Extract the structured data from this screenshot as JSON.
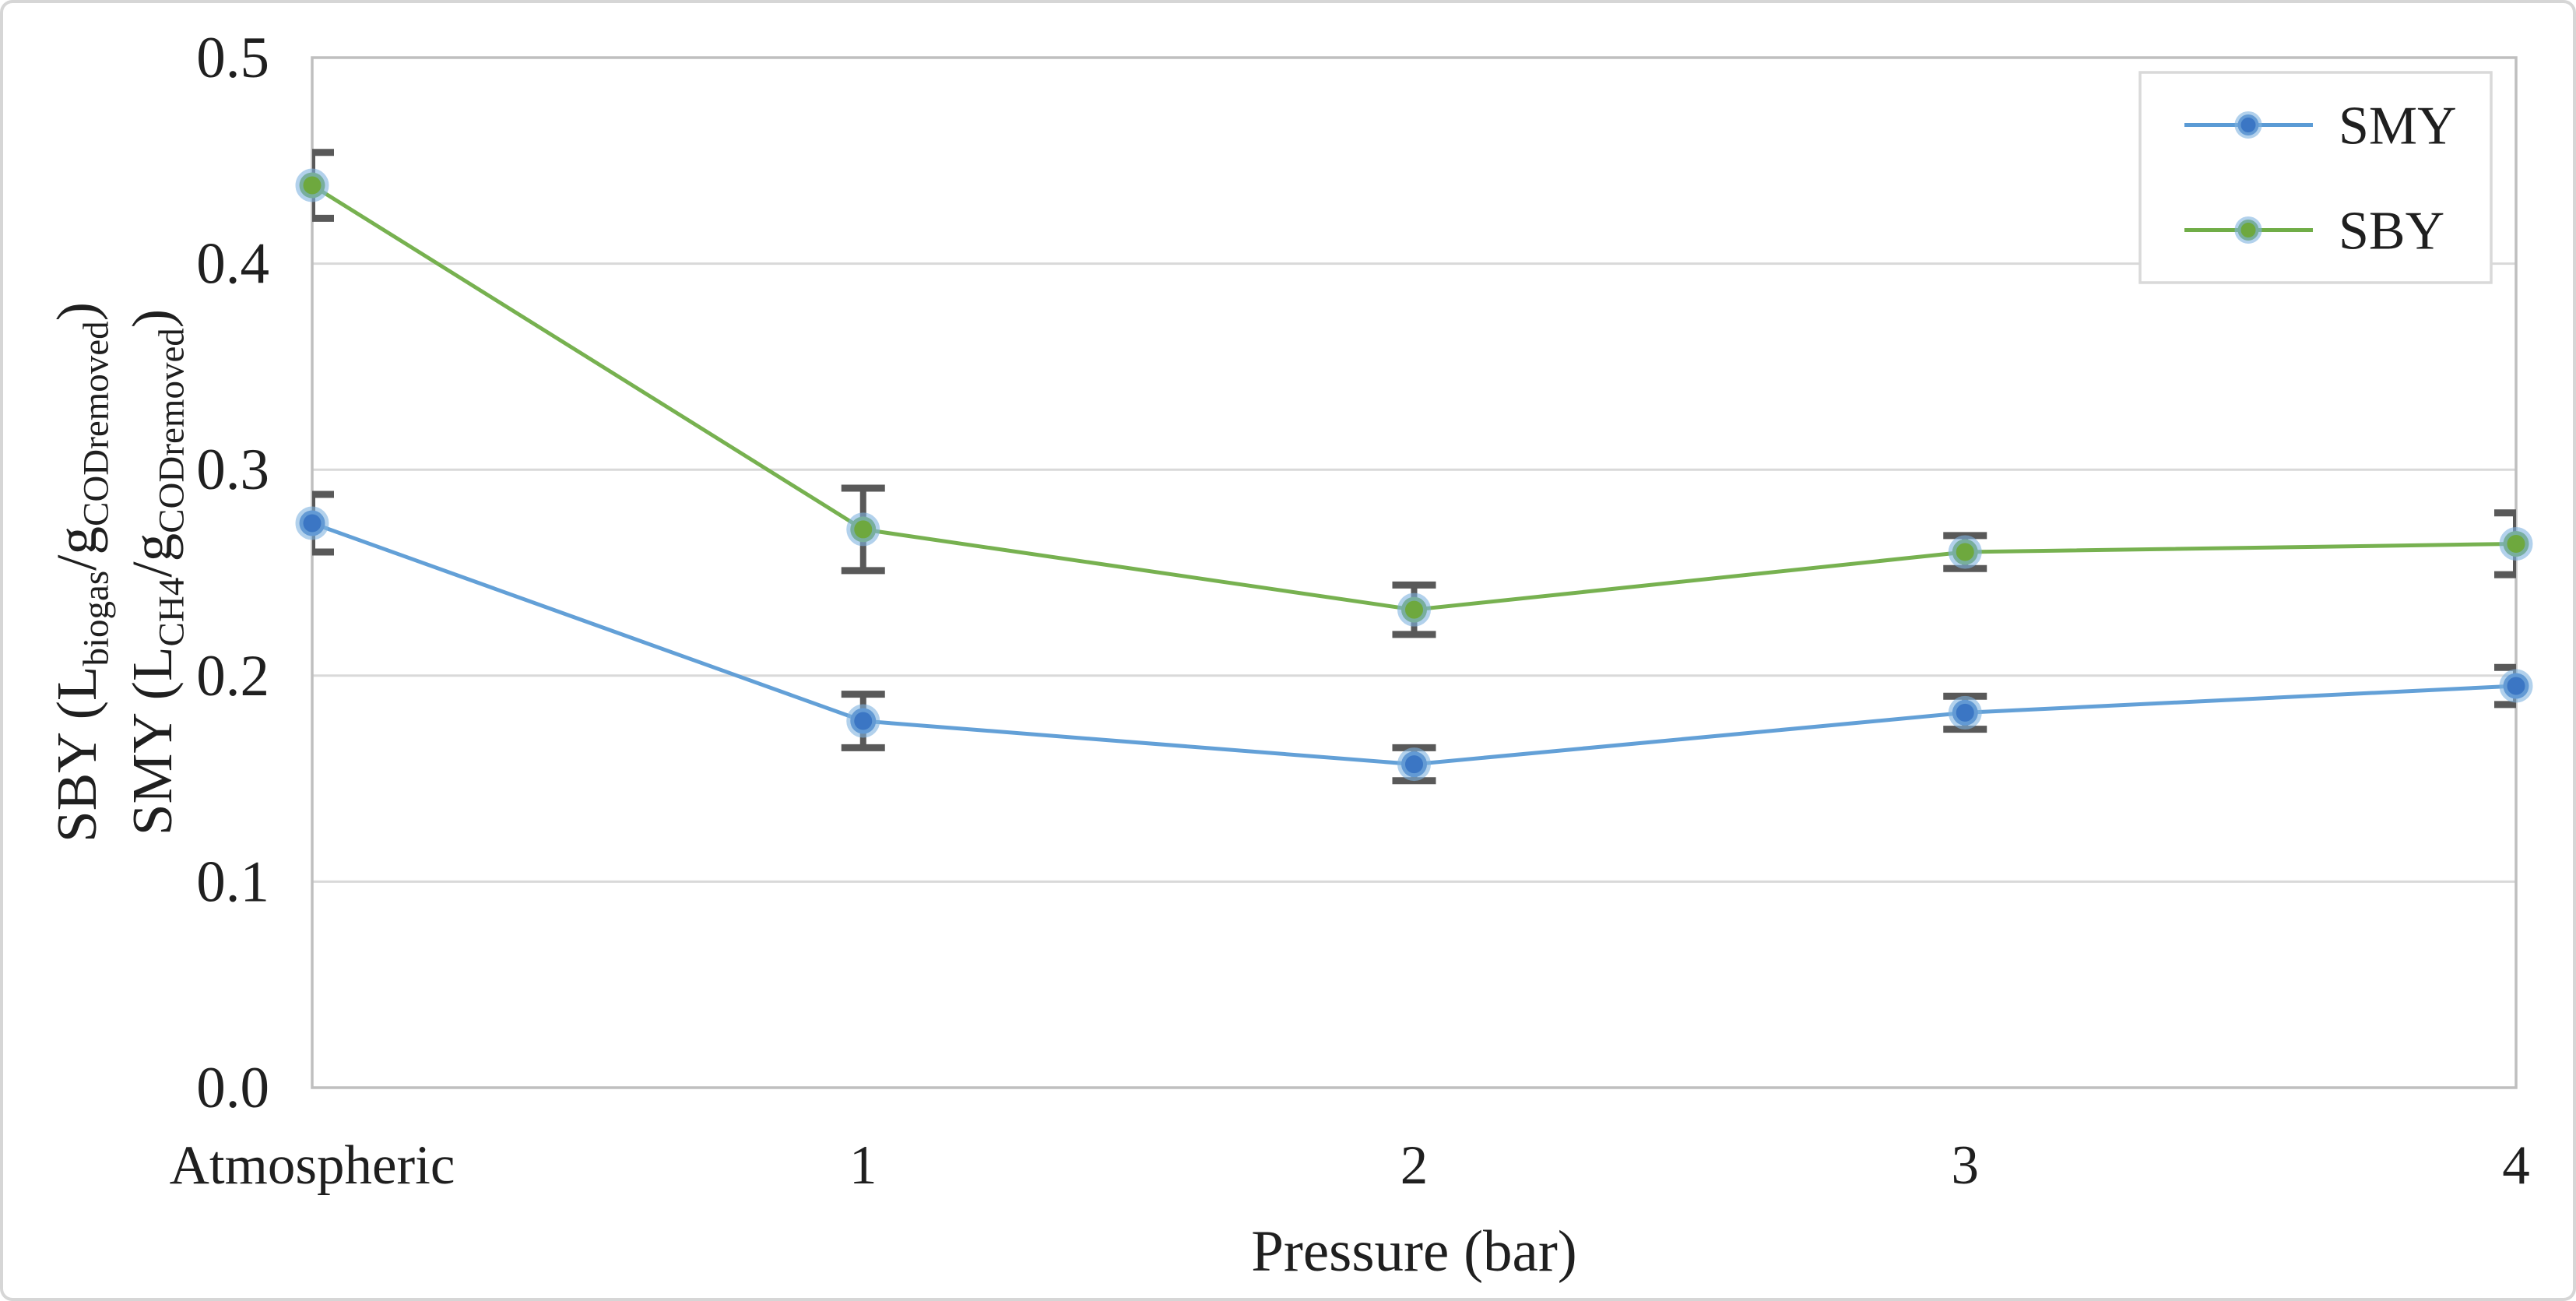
{
  "chart_data": {
    "type": "line",
    "title": "",
    "xlabel": "Pressure (bar)",
    "categories": [
      "Atmospheric",
      "1",
      "2",
      "3",
      "4"
    ],
    "ylim": [
      0,
      0.5
    ],
    "ytick_labels": [
      "0.0",
      "0.1",
      "0.2",
      "0.3",
      "0.4",
      "0.5"
    ],
    "grid": true,
    "legend_position": "top-right",
    "y_axis_title_lines": [
      {
        "segments": [
          {
            "text": "SBY (L"
          },
          {
            "text": "biogas",
            "sub": true
          },
          {
            "text": "/g"
          },
          {
            "text": "CODremoved",
            "sub": true
          },
          {
            "text": ")"
          }
        ]
      },
      {
        "segments": [
          {
            "text": "SMY (L"
          },
          {
            "text": "CH4",
            "sub": true
          },
          {
            "text": "/g"
          },
          {
            "text": "CODremoved",
            "sub": true
          },
          {
            "text": ")"
          }
        ]
      }
    ],
    "series": [
      {
        "name": "SMY",
        "line_color": "#5b9bd5",
        "marker_color": "#3b76c4",
        "marker_ring_color": "#7fb2e0",
        "values": [
          0.274,
          0.178,
          0.157,
          0.182,
          0.195
        ],
        "errors": [
          0.014,
          0.013,
          0.008,
          0.008,
          0.009
        ]
      },
      {
        "name": "SBY",
        "line_color": "#70ad47",
        "marker_color": "#6ea83e",
        "marker_ring_color": "#7fb2e0",
        "values": [
          0.438,
          0.271,
          0.232,
          0.26,
          0.264
        ],
        "errors": [
          0.016,
          0.02,
          0.012,
          0.008,
          0.015
        ]
      }
    ],
    "error_bar_color": "#595959",
    "grid_color": "#d9d9d9",
    "plot_border_color": "#bfbfbf",
    "text_color": "#1f1f1f",
    "legend_labels": [
      "SMY",
      "SBY"
    ]
  }
}
